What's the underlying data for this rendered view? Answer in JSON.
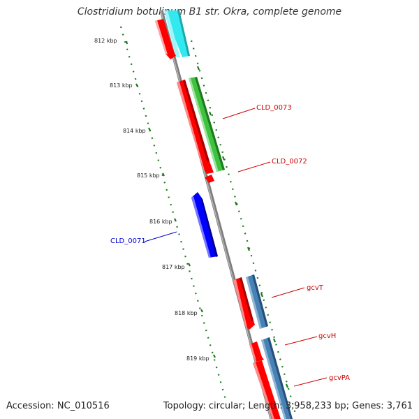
{
  "title": "Clostridium botulinum B1 str. Okra, complete genome",
  "footer": {
    "accession": "Accession: NC_010516",
    "topology": "Topology: circular; Length: 3,958,233 bp; Genes: 3,761"
  },
  "ticks": [
    {
      "label": "812 kbp"
    },
    {
      "label": "813 kbp"
    },
    {
      "label": "814 kbp"
    },
    {
      "label": "815 kbp"
    },
    {
      "label": "816 kbp"
    },
    {
      "label": "817 kbp"
    },
    {
      "label": "818 kbp"
    },
    {
      "label": "819 kbp"
    }
  ],
  "gene_labels": [
    {
      "name": "CLD_0073",
      "color": "#cc0000"
    },
    {
      "name": "CLD_0072",
      "color": "#cc0000"
    },
    {
      "name": "CLD_0071",
      "color": "#0000cc"
    },
    {
      "name": "gcvT",
      "color": "#cc0000"
    },
    {
      "name": "gcvH",
      "color": "#cc0000"
    },
    {
      "name": "gcvPA",
      "color": "#cc0000"
    }
  ],
  "colors": {
    "cds_red": "#ff0000",
    "cds_blue": "#0000ff",
    "cyan": "#33e8ee",
    "green": "#3fc23f",
    "steel_blue": "#4682b4",
    "backbone": "#888888",
    "tick_green": "#1a7a1a"
  }
}
